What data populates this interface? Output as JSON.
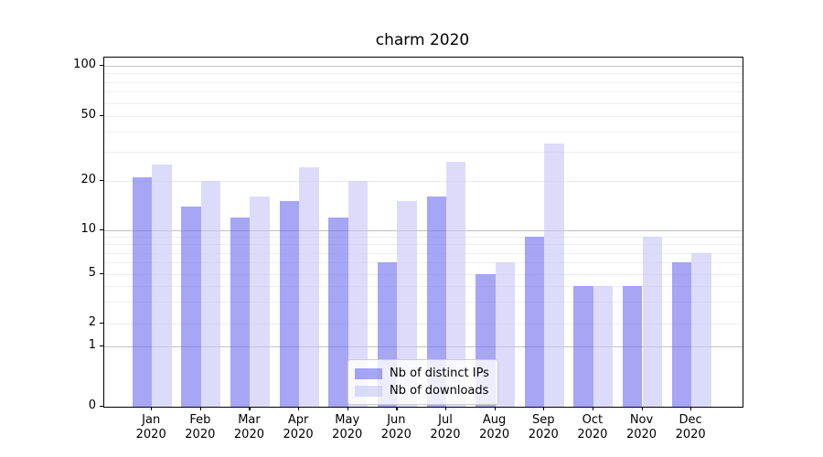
{
  "chart_data": {
    "type": "bar",
    "title": "charm 2020",
    "x_axis": {
      "months": [
        "Jan",
        "Feb",
        "Mar",
        "Apr",
        "May",
        "Jun",
        "Jul",
        "Aug",
        "Sep",
        "Oct",
        "Nov",
        "Dec"
      ],
      "year": "2020"
    },
    "series": [
      {
        "name": "Nb of distinct IPs",
        "color": "#7070ef",
        "values": [
          21,
          14,
          12,
          15,
          12,
          6,
          16,
          5,
          9,
          4,
          4,
          6
        ]
      },
      {
        "name": "Nb of downloads",
        "color": "#c7c7f7",
        "values": [
          25,
          20,
          16,
          24,
          20,
          15,
          26,
          6,
          34,
          4,
          9,
          7
        ]
      }
    ],
    "y_axis": {
      "scale": "asinh",
      "ticks": [
        0,
        1,
        2,
        5,
        10,
        20,
        50,
        100
      ],
      "emphasized_gridlines": [
        1,
        10,
        100
      ],
      "minor_gridlines": [
        3,
        4,
        6,
        7,
        8,
        9,
        30,
        40,
        60,
        70,
        80,
        90
      ],
      "ylim": [
        0,
        112
      ]
    },
    "grid": true,
    "legend": {
      "position": "lower center"
    }
  }
}
